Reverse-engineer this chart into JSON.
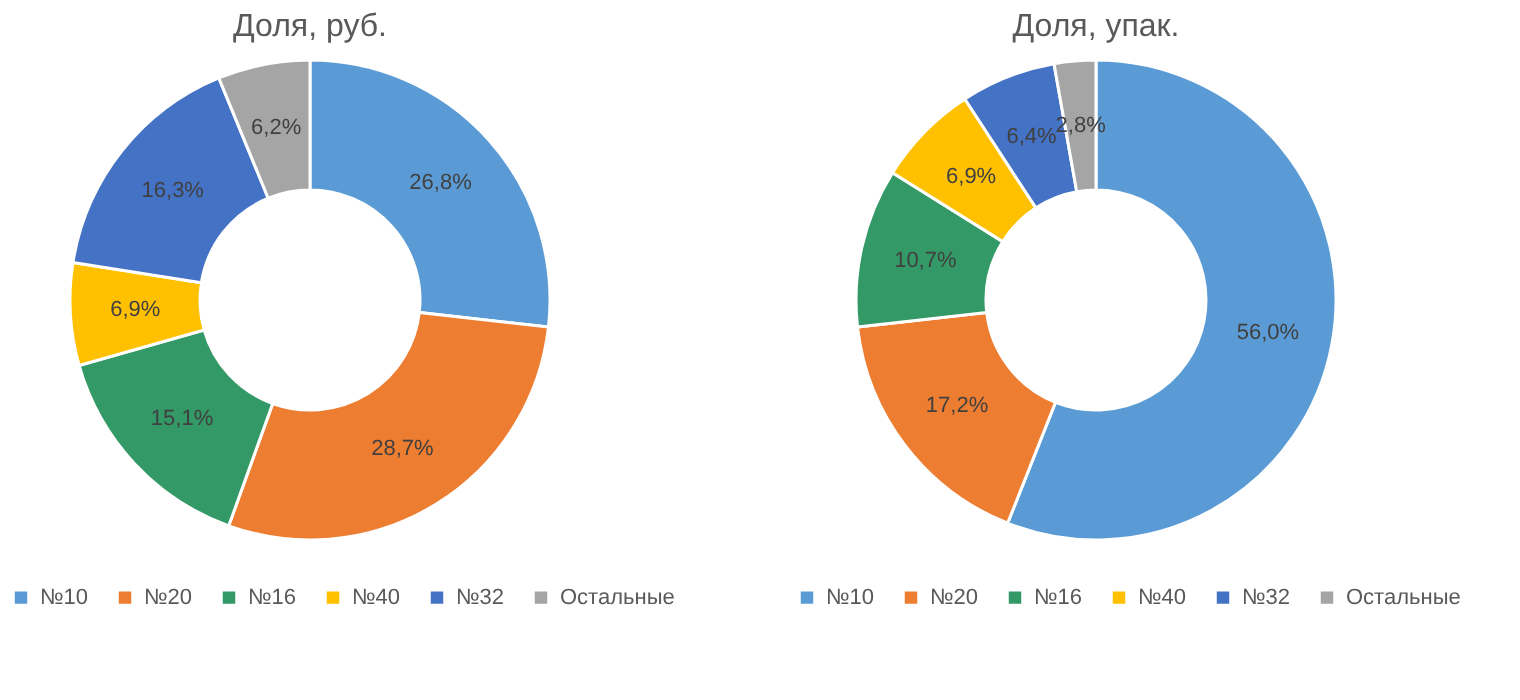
{
  "chart_data": [
    {
      "type": "donut",
      "title": "Доля, руб.",
      "categories": [
        "№10",
        "№20",
        "№16",
        "№40",
        "№32",
        "Остальные"
      ],
      "values": [
        26.8,
        28.7,
        15.1,
        6.9,
        16.3,
        6.2
      ],
      "value_labels": [
        "26,8%",
        "28,7%",
        "15,1%",
        "6,9%",
        "16,3%",
        "6,2%"
      ],
      "colors": [
        "#5b9bd5",
        "#ed7d31",
        "#339966",
        "#ffc000",
        "#4472c4",
        "#a5a5a5"
      ],
      "legend": "bottom"
    },
    {
      "type": "donut",
      "title": "Доля, упак.",
      "categories": [
        "№10",
        "№20",
        "№16",
        "№40",
        "№32",
        "Остальные"
      ],
      "values": [
        56.0,
        17.2,
        10.7,
        6.9,
        6.4,
        2.8
      ],
      "value_labels": [
        "56,0%",
        "17,2%",
        "10,7%",
        "6,9%",
        "6,4%",
        "2,8%"
      ],
      "colors": [
        "#5b9bd5",
        "#ed7d31",
        "#339966",
        "#ffc000",
        "#4472c4",
        "#a5a5a5"
      ],
      "legend": "bottom"
    }
  ]
}
